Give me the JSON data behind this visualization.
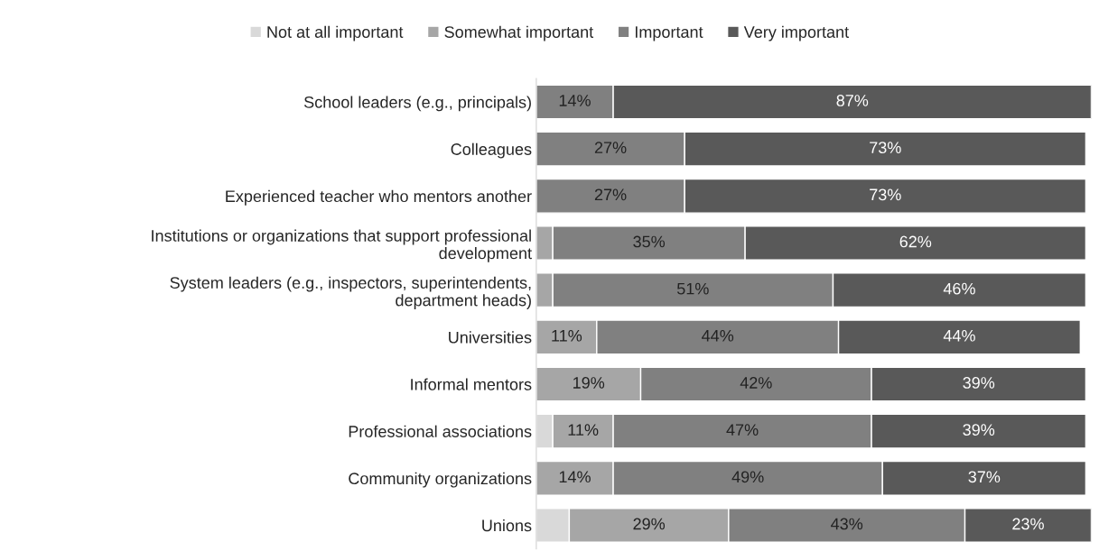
{
  "chart_data": {
    "type": "bar",
    "orientation": "horizontal",
    "stacked": true,
    "legend": "top",
    "tick_labels": "y",
    "grid": false,
    "xlim": [
      0,
      101
    ],
    "categories": [
      "School leaders (e.g., principals)",
      "Colleagues",
      "Experienced teacher who mentors another",
      "Institutions or organizations that support professional\ndevelopment",
      "System leaders (e.g., inspectors, superintendents,\ndepartment heads)",
      "Universities",
      "Informal mentors",
      "Professional associations",
      "Community organizations",
      "Unions"
    ],
    "series": [
      {
        "name": "Not at all important",
        "color": "#d9d9d9",
        "values": [
          0,
          0,
          0,
          0,
          0,
          0,
          0,
          3,
          0,
          6
        ],
        "value_labels": [
          null,
          null,
          null,
          null,
          null,
          null,
          null,
          null,
          null,
          null
        ]
      },
      {
        "name": "Somewhat important",
        "color": "#a6a6a6",
        "values": [
          0,
          0,
          0,
          3,
          3,
          11,
          19,
          11,
          14,
          29
        ],
        "value_labels": [
          null,
          null,
          null,
          null,
          null,
          "11%",
          "19%",
          "11%",
          "14%",
          "29%"
        ]
      },
      {
        "name": "Important",
        "color": "#808080",
        "values": [
          14,
          27,
          27,
          35,
          51,
          44,
          42,
          47,
          49,
          43
        ],
        "value_labels": [
          "14%",
          "27%",
          "27%",
          "35%",
          "51%",
          "44%",
          "42%",
          "47%",
          "49%",
          "43%"
        ]
      },
      {
        "name": "Very important",
        "color": "#595959",
        "values": [
          87,
          73,
          73,
          62,
          46,
          44,
          39,
          39,
          37,
          23
        ],
        "value_labels": [
          "87%",
          "73%",
          "73%",
          "62%",
          "46%",
          "44%",
          "39%",
          "39%",
          "37%",
          "23%"
        ]
      }
    ]
  }
}
